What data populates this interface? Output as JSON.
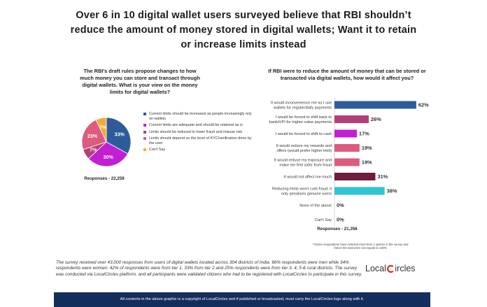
{
  "headline": {
    "line1": "Over 6 in 10 digital wallet users surveyed believe that RBI shouldn’t",
    "line2": "reduce the amount of money stored in digital wallets; Want it to retain",
    "line3": "or increase limits instead"
  },
  "left_panel": {
    "question": "The RBI's draft rules propose changes to how much money you can store and transact through digital wallets. What is your view on the money limits for digital wallets?",
    "responses": "Responses - 22,259"
  },
  "right_panel": {
    "question": "If RBI were to reduce the amount of money that can be stored or transacted via digital wallets, how would it affect you?",
    "responses": "Responses - 21,356",
    "footnote_line1": "**Some respondents have selected more than 1 options in the survey and",
    "footnote_line2": "hence the total does not equate to 100%"
  },
  "survey_text": "The survey received over 43,000 responses from users of digital wallets located across 304 districts of India. 66% respondents were men while 34% respondents were women. 42% of respondents were from tier 1, 33% from tier 2 and 25% respondents were from tier 3, 4, 5 & rural districts. The survey was conducted via LocalCircles platform, and all participants were validated citizens who had to be registered with LocalCircles to participate in this survey.",
  "logo": {
    "part1": "Local",
    "part2": "ircles"
  },
  "footer": "All contents in the above graphic is a copyright of LocalCircles and if published or broadcasted, must carry the LocalCircles logo along with it.",
  "chart_data": [
    {
      "type": "pie",
      "title": "The RBI's draft rules propose changes to how much money you can store and transact through digital wallets. What is your view on the money limits for digital wallets?",
      "slices": [
        {
          "label": "Current limits should be increased as people increasingly rely on wallets",
          "value": 33,
          "display": "33%",
          "color": "#2e5c9a"
        },
        {
          "label": "Current limits are adequate and should be retained as is",
          "value": 30,
          "display": "30%",
          "color": "#c21fd1"
        },
        {
          "label": "Limits should be reduced to lower fraud and misuse risk",
          "value": 7,
          "display": "7%",
          "color": "#b53e7a"
        },
        {
          "label": "Limits should depend on the level of KYC/verification done by the user",
          "value": 23,
          "display": "23%",
          "color": "#dd5c7e"
        },
        {
          "label": "Can't Say",
          "value": 7,
          "display": "7%",
          "color": "#f3aa38"
        }
      ],
      "legend_position": "right"
    },
    {
      "type": "bar",
      "orientation": "horizontal",
      "title": "If RBI were to reduce the amount of money that can be stored or transacted via digital wallets, how would it affect you?",
      "xlim": [
        0,
        70
      ],
      "categories": [
        [
          "It would inconvenience me as I use",
          "wallets for regular/daily payments"
        ],
        [
          "I would be forced to shift back to",
          "bank/UPI for higher-value payments"
        ],
        [
          "I would be forced to shift to cash"
        ],
        [
          "It would reduce my rewards and",
          "offers (would prefer higher limit)"
        ],
        [
          "It would reduce my exposure and",
          "make me feel safer from fraud"
        ],
        [
          "It would not affect me much"
        ],
        [
          "Reducing limits won't curb fraud; it",
          "only penalises genuine users"
        ],
        [
          "None of the above"
        ],
        [
          "Can't Say"
        ]
      ],
      "values": [
        62,
        26,
        17,
        19,
        19,
        31,
        38,
        0,
        0
      ],
      "labels": [
        "62%",
        "26%",
        "17%",
        "19%",
        "19%",
        "31%",
        "38%",
        "0%",
        "0%"
      ],
      "colors": [
        "#2e5c9a",
        "#b53e7a",
        "#c21fd1",
        "#dd5c7e",
        "#dd5c7e",
        "#6e1b3d",
        "#2ec4d3",
        "#2ec4d3",
        "#2ec4d3"
      ]
    }
  ]
}
